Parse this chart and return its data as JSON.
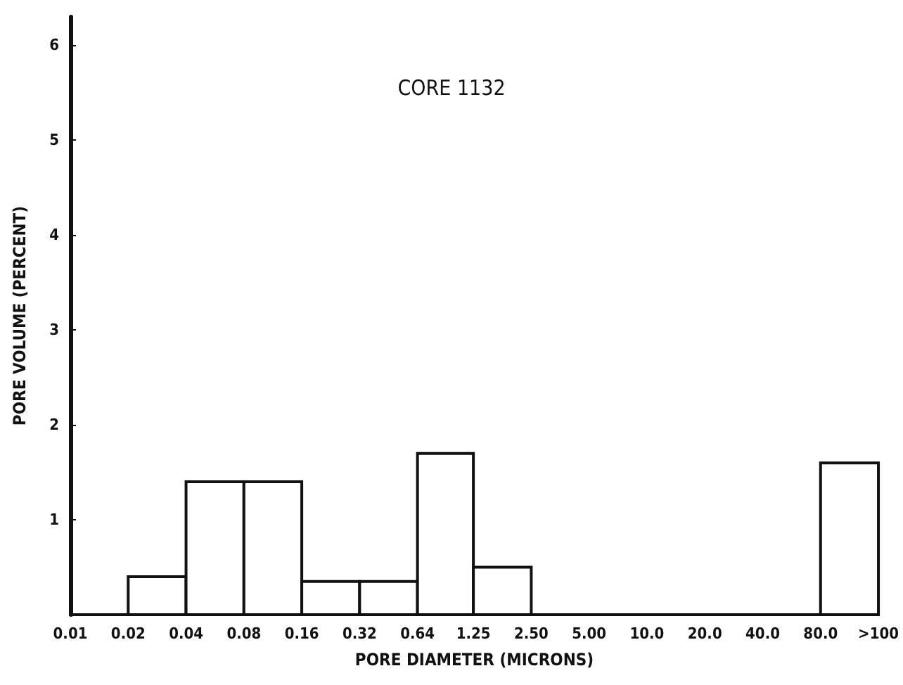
{
  "chart_data": {
    "type": "histogram",
    "title": "CORE 1132",
    "xlabel": "PORE DIAMETER (MICRONS)",
    "ylabel": "PORE VOLUME (PERCENT)",
    "bins": [
      0.01,
      0.02,
      0.04,
      0.08,
      0.16,
      0.32,
      0.64,
      1.25,
      2.5,
      5,
      10,
      20,
      40,
      80,
      160
    ],
    "values": [
      0,
      0.4,
      1.4,
      1.4,
      0.35,
      0.35,
      1.7,
      0.5,
      0,
      0,
      0,
      0,
      0,
      1.6
    ],
    "color": "#ffffff",
    "log": "x",
    "xlim": [
      0.01,
      160
    ],
    "xticks": [
      0.01,
      0.02,
      0.04,
      0.08,
      0.16,
      0.32,
      0.64,
      1.25,
      {
        "value": 2.5,
        "label": "2.50"
      },
      {
        "value": 5,
        "label": "5.00"
      },
      {
        "value": 10,
        "label": "10.0"
      },
      {
        "value": 20,
        "label": "20.0"
      },
      {
        "value": 40,
        "label": "40.0"
      },
      {
        "value": 80,
        "label": "80.0"
      },
      {
        "value": 160,
        "label": ">100"
      }
    ],
    "ylim": [
      0,
      6.3
    ],
    "yticks": [
      1,
      2,
      3,
      4,
      5,
      6
    ],
    "grid": false
  }
}
